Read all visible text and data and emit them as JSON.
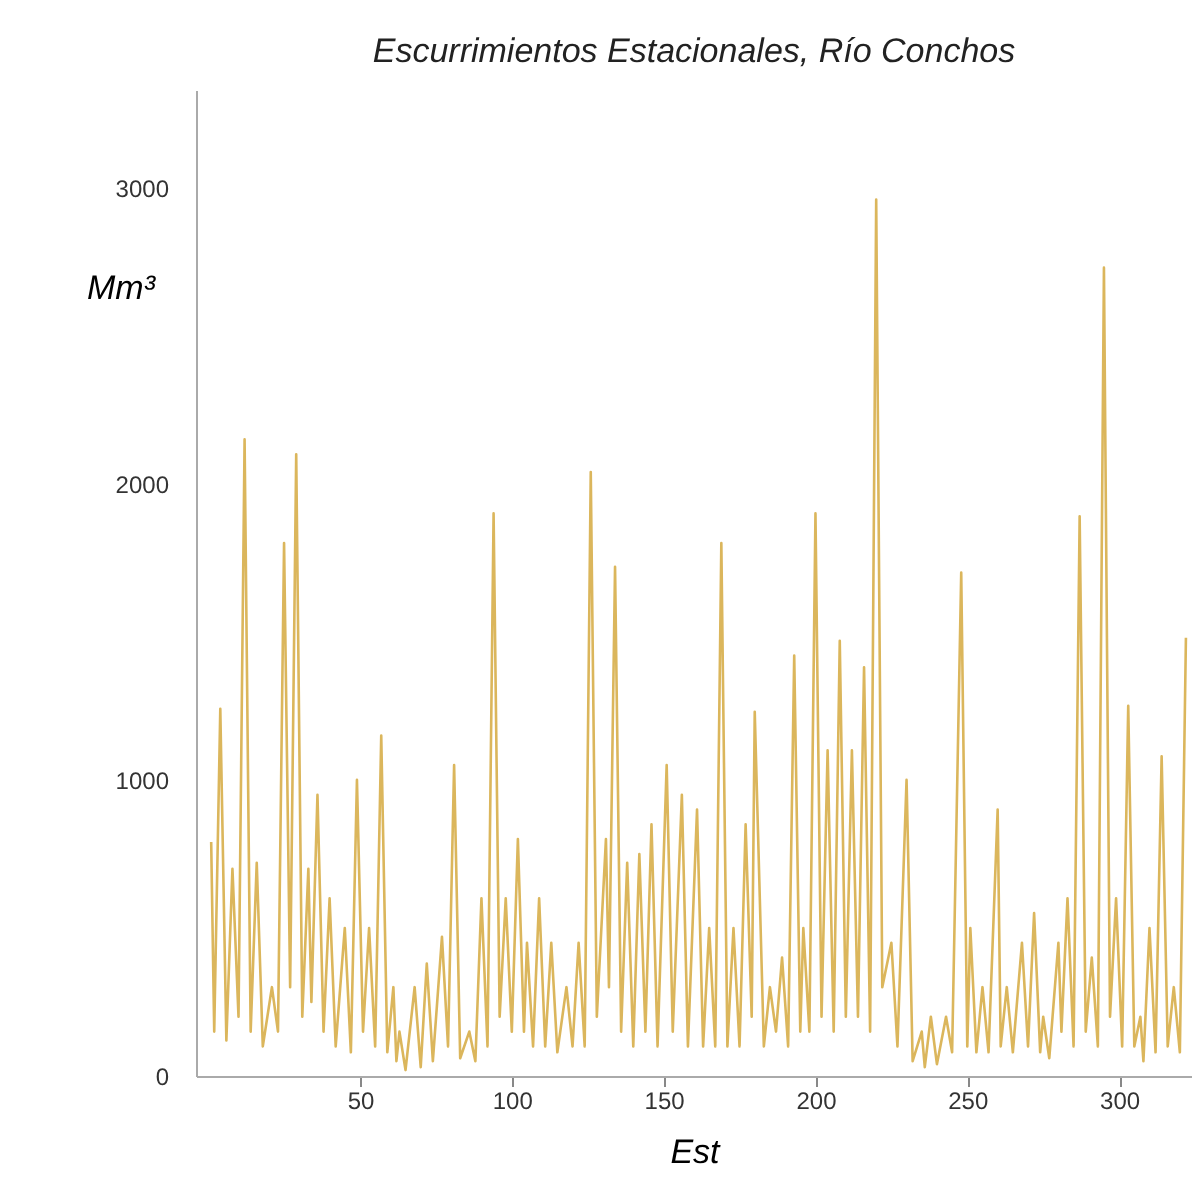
{
  "chart_data": {
    "type": "line",
    "title": "Escurrimientos Estacionales, Río Conchos",
    "xlabel": "Est",
    "ylabel": "Mm³",
    "color": "#dbb65c",
    "x": [
      1,
      2,
      4,
      6,
      8,
      10,
      12,
      14,
      16,
      18,
      21,
      23,
      25,
      27,
      29,
      31,
      33,
      34,
      36,
      38,
      40,
      42,
      45,
      47,
      49,
      51,
      53,
      55,
      57,
      59,
      61,
      62,
      63,
      65,
      68,
      70,
      72,
      74,
      77,
      79,
      81,
      83,
      86,
      88,
      90,
      92,
      94,
      96,
      98,
      100,
      102,
      104,
      105,
      107,
      109,
      111,
      113,
      115,
      118,
      120,
      122,
      124,
      126,
      128,
      131,
      132,
      134,
      136,
      138,
      140,
      142,
      144,
      146,
      148,
      151,
      153,
      156,
      158,
      161,
      163,
      165,
      167,
      169,
      171,
      173,
      175,
      177,
      179,
      180,
      183,
      185,
      187,
      189,
      191,
      193,
      195,
      196,
      198,
      200,
      202,
      204,
      206,
      208,
      210,
      212,
      214,
      216,
      218,
      220,
      222,
      225,
      227,
      230,
      232,
      235,
      236,
      238,
      240,
      243,
      245,
      248,
      250,
      251,
      253,
      255,
      257,
      260,
      261,
      263,
      265,
      268,
      270,
      272,
      274,
      275,
      277,
      280,
      281,
      283,
      285,
      287,
      289,
      291,
      293,
      295,
      297,
      299,
      301,
      303,
      305,
      307,
      308,
      310,
      312,
      314,
      316,
      318,
      320,
      322
    ],
    "values": [
      790,
      150,
      1240,
      120,
      700,
      200,
      2150,
      150,
      720,
      100,
      300,
      150,
      1800,
      300,
      2100,
      200,
      700,
      250,
      950,
      150,
      600,
      100,
      500,
      80,
      1000,
      150,
      500,
      100,
      1150,
      80,
      300,
      50,
      150,
      20,
      300,
      30,
      380,
      50,
      470,
      100,
      1050,
      60,
      150,
      50,
      600,
      100,
      1900,
      200,
      600,
      150,
      800,
      150,
      450,
      100,
      600,
      100,
      450,
      80,
      300,
      100,
      450,
      100,
      2040,
      200,
      800,
      300,
      1720,
      150,
      720,
      100,
      750,
      150,
      850,
      100,
      1050,
      150,
      950,
      100,
      900,
      100,
      500,
      100,
      1800,
      100,
      500,
      100,
      850,
      200,
      1230,
      100,
      300,
      150,
      400,
      100,
      1420,
      150,
      500,
      150,
      1900,
      200,
      1100,
      150,
      1470,
      200,
      1100,
      200,
      1380,
      150,
      2960,
      300,
      450,
      100,
      1000,
      50,
      150,
      30,
      200,
      40,
      200,
      80,
      1700,
      100,
      500,
      80,
      300,
      80,
      900,
      100,
      300,
      80,
      450,
      100,
      550,
      80,
      200,
      60,
      450,
      150,
      600,
      100,
      1890,
      150,
      400,
      100,
      2730,
      200,
      600,
      100,
      1250,
      100,
      200,
      50,
      500,
      80,
      1080,
      100,
      300,
      80,
      1480
    ],
    "xlim": [
      -4,
      324
    ],
    "ylim": [
      0,
      3330
    ],
    "xticks": [
      50,
      100,
      150,
      200,
      250,
      300
    ],
    "yticks": [
      0,
      1000,
      2000,
      3000
    ],
    "grid": false
  }
}
